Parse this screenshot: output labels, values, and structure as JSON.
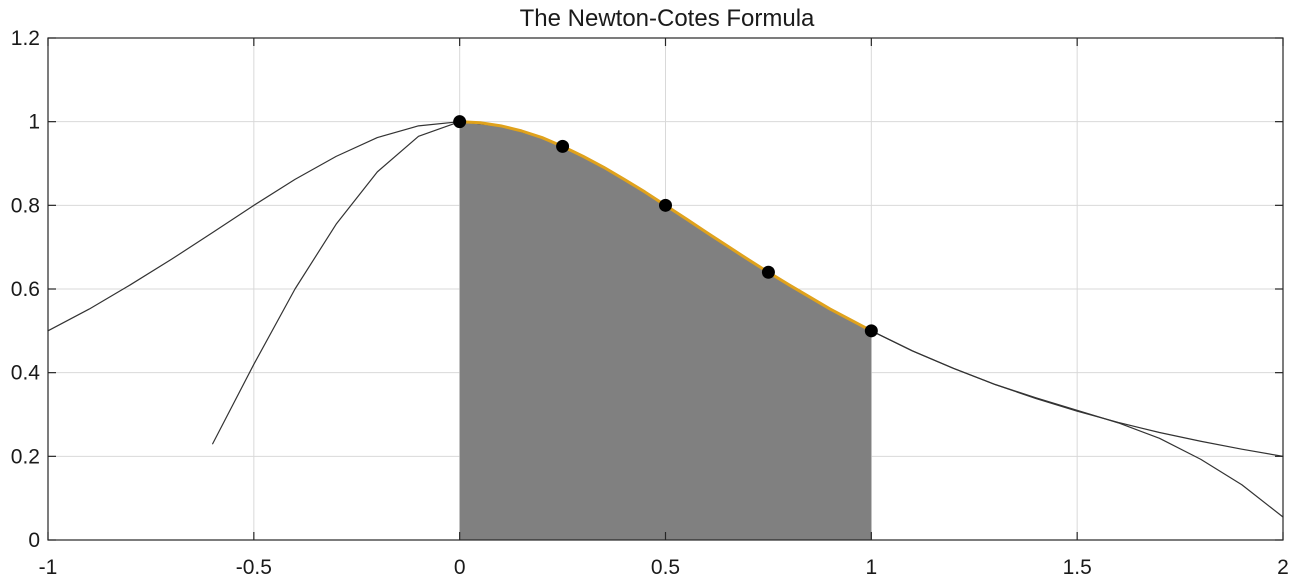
{
  "chart_data": {
    "type": "line",
    "title": "The Newton-Cotes Formula",
    "xlabel": "",
    "ylabel": "",
    "xlim": [
      -1,
      2
    ],
    "ylim": [
      0,
      1.2
    ],
    "grid": true,
    "x_ticks": [
      -1,
      -0.5,
      0,
      0.5,
      1,
      1.5,
      2
    ],
    "x_tick_labels": [
      "-1",
      "-0.5",
      "0",
      "0.5",
      "1",
      "1.5",
      "2"
    ],
    "y_ticks": [
      0,
      0.2,
      0.4,
      0.6,
      0.8,
      1,
      1.2
    ],
    "y_tick_labels": [
      "0",
      "0.2",
      "0.4",
      "0.6",
      "0.8",
      "1",
      "1.2"
    ],
    "colors": {
      "shaded_area": "#808080",
      "interpolant": "#e0a21c",
      "curves": "#333333",
      "markers": "#000000",
      "grid": "#d9d9d9",
      "axes": "#262626"
    },
    "series": [
      {
        "kind": "curve",
        "x": [
          -1,
          -0.9,
          -0.8,
          -0.7,
          -0.6,
          -0.5,
          -0.4,
          -0.3,
          -0.2,
          -0.1,
          0,
          0.1,
          0.2,
          0.3,
          0.4,
          0.5,
          0.6,
          0.7,
          0.8,
          0.9,
          1,
          1.1,
          1.2,
          1.3,
          1.4,
          1.5,
          1.6,
          1.7,
          1.8,
          1.9,
          2
        ],
        "y": [
          0.5,
          0.552,
          0.61,
          0.671,
          0.735,
          0.8,
          0.862,
          0.917,
          0.962,
          0.99,
          1,
          0.99,
          0.962,
          0.917,
          0.862,
          0.8,
          0.735,
          0.671,
          0.61,
          0.552,
          0.5,
          0.452,
          0.41,
          0.372,
          0.338,
          0.308,
          0.281,
          0.257,
          0.236,
          0.217,
          0.2
        ]
      },
      {
        "kind": "curve",
        "x": [
          -0.6,
          -0.5,
          -0.4,
          -0.3,
          -0.2,
          -0.1,
          0,
          0.1,
          0.2,
          0.3,
          0.4,
          0.5,
          0.6,
          0.7,
          0.8,
          0.9,
          1,
          1.1,
          1.2,
          1.3,
          1.4,
          1.5,
          1.6,
          1.7,
          1.8,
          1.9,
          2
        ],
        "y": [
          0.23,
          0.42,
          0.6,
          0.755,
          0.88,
          0.965,
          1,
          0.99,
          0.962,
          0.917,
          0.862,
          0.8,
          0.735,
          0.671,
          0.61,
          0.552,
          0.5,
          0.452,
          0.41,
          0.372,
          0.34,
          0.31,
          0.28,
          0.243,
          0.193,
          0.132,
          0.055
        ]
      },
      {
        "kind": "interpolant",
        "x": [
          0,
          0.05,
          0.1,
          0.15,
          0.2,
          0.25,
          0.3,
          0.35,
          0.4,
          0.45,
          0.5,
          0.55,
          0.6,
          0.65,
          0.7,
          0.75,
          0.8,
          0.85,
          0.9,
          0.95,
          1
        ],
        "y": [
          1,
          0.9975,
          0.99,
          0.978,
          0.962,
          0.941,
          0.917,
          0.891,
          0.862,
          0.832,
          0.8,
          0.768,
          0.735,
          0.703,
          0.671,
          0.64,
          0.61,
          0.581,
          0.552,
          0.526,
          0.5
        ]
      }
    ],
    "shaded_region": {
      "x_from": 0,
      "x_to": 1
    },
    "points": {
      "x": [
        0,
        0.25,
        0.5,
        0.75,
        1
      ],
      "y": [
        1,
        0.941,
        0.8,
        0.64,
        0.5
      ]
    }
  }
}
